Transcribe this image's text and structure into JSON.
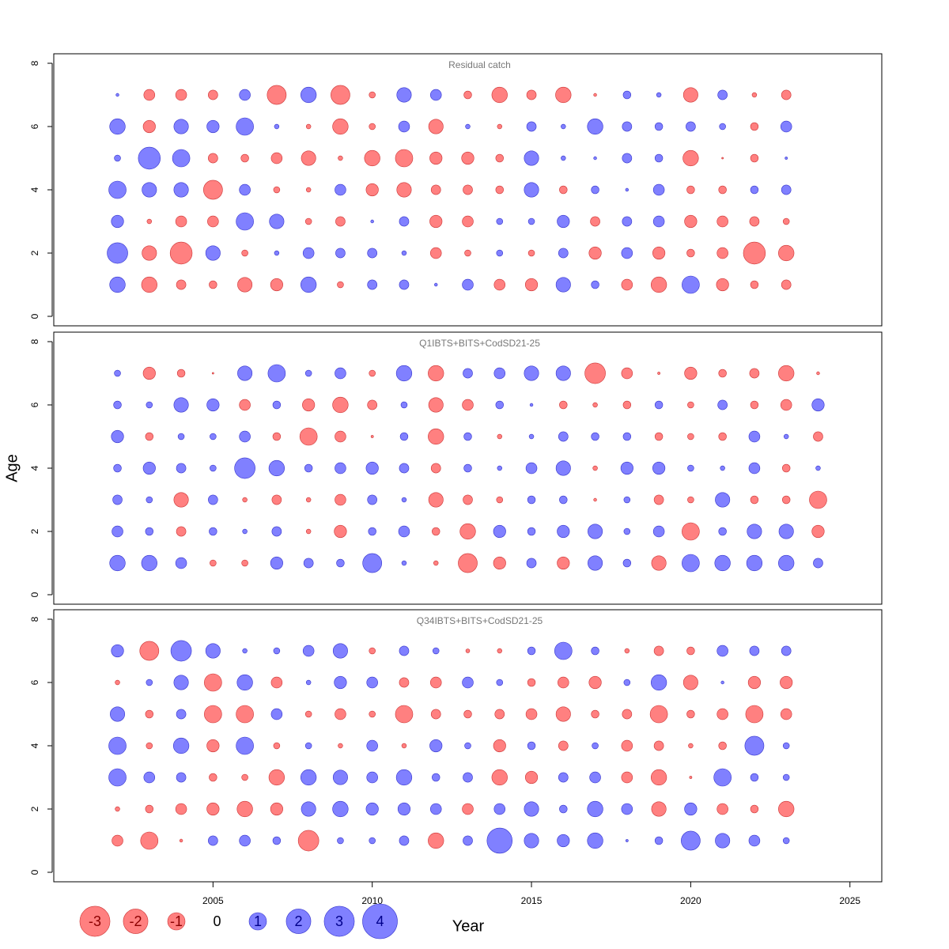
{
  "chart_data": [
    {
      "type": "bubble",
      "title": "Residual catch",
      "years": [
        2002,
        2003,
        2004,
        2005,
        2006,
        2007,
        2008,
        2009,
        2010,
        2011,
        2012,
        2013,
        2014,
        2015,
        2016,
        2017,
        2018,
        2019,
        2020,
        2021,
        2022,
        2023
      ],
      "ages": [
        1,
        2,
        3,
        4,
        5,
        6,
        7
      ],
      "values": [
        [
          0.8,
          -0.8,
          -0.3,
          -0.2,
          -0.7,
          -0.5,
          0.8,
          -0.13,
          0.3,
          0.3,
          0.03,
          0.4,
          -0.4,
          -0.5,
          0.7,
          0.2,
          -0.4,
          -0.8,
          1.0,
          -0.5,
          -0.2,
          -0.3
        ],
        [
          1.4,
          -0.7,
          -1.6,
          0.7,
          -0.13,
          0.07,
          0.4,
          0.3,
          0.3,
          0.07,
          -0.4,
          -0.13,
          0.13,
          -0.13,
          0.3,
          -0.5,
          0.4,
          -0.5,
          -0.2,
          -0.4,
          -1.6,
          -0.8
        ],
        [
          0.5,
          -0.07,
          -0.4,
          -0.4,
          1.0,
          0.7,
          -0.13,
          -0.3,
          0.03,
          0.3,
          -0.5,
          -0.4,
          0.13,
          0.13,
          0.5,
          -0.3,
          0.3,
          0.4,
          -0.5,
          -0.4,
          -0.3,
          -0.13
        ],
        [
          1.0,
          0.7,
          0.7,
          -1.2,
          0.4,
          -0.13,
          -0.07,
          0.4,
          -0.5,
          -0.7,
          -0.3,
          -0.3,
          -0.2,
          0.7,
          -0.2,
          0.2,
          0.03,
          0.4,
          -0.2,
          -0.2,
          0.2,
          0.3
        ],
        [
          0.13,
          1.6,
          1.0,
          -0.3,
          -0.2,
          -0.4,
          -0.7,
          -0.07,
          -0.8,
          -1.0,
          -0.5,
          -0.5,
          -0.2,
          0.7,
          0.07,
          0.03,
          0.3,
          0.2,
          -0.8,
          -0.01,
          -0.2,
          0.02
        ],
        [
          0.8,
          -0.5,
          0.7,
          0.5,
          1.0,
          0.07,
          -0.07,
          -0.8,
          -0.13,
          0.4,
          -0.7,
          0.07,
          -0.07,
          0.3,
          0.07,
          0.8,
          0.3,
          0.2,
          0.3,
          0.13,
          -0.2,
          0.4
        ],
        [
          0.03,
          -0.4,
          -0.4,
          -0.3,
          0.4,
          -1.2,
          0.8,
          -1.2,
          -0.13,
          0.7,
          0.4,
          -0.2,
          -0.8,
          -0.3,
          -0.8,
          -0.03,
          0.2,
          0.07,
          -0.7,
          0.3,
          -0.07,
          -0.3
        ]
      ],
      "xlim": [
        2000,
        2026
      ],
      "ylim": [
        -0.3,
        8.3
      ],
      "yticks": [
        0,
        2,
        4,
        6,
        8
      ],
      "positive_color": "#8080ff",
      "negative_color": "#ff8080"
    },
    {
      "type": "bubble",
      "title": "Q1IBTS+BITS+CodSD21-25",
      "y_label": "Age",
      "years": [
        2002,
        2003,
        2004,
        2005,
        2006,
        2007,
        2008,
        2009,
        2010,
        2011,
        2012,
        2013,
        2014,
        2015,
        2016,
        2017,
        2018,
        2019,
        2020,
        2021,
        2022,
        2023,
        2024
      ],
      "ages": [
        1,
        2,
        3,
        4,
        5,
        6,
        7
      ],
      "values": [
        [
          0.8,
          0.8,
          0.4,
          -0.13,
          -0.13,
          0.5,
          0.3,
          0.2,
          1.2,
          0.07,
          -0.07,
          -1.2,
          -0.5,
          0.3,
          -0.5,
          0.7,
          0.2,
          -0.7,
          1.0,
          0.8,
          0.8,
          0.8,
          0.3
        ],
        [
          0.4,
          0.2,
          -0.3,
          0.2,
          0.07,
          0.3,
          -0.07,
          -0.5,
          0.2,
          0.4,
          -0.2,
          -0.8,
          0.5,
          0.2,
          0.5,
          0.7,
          0.13,
          0.4,
          -1.0,
          0.2,
          0.7,
          0.7,
          -0.5
        ],
        [
          0.3,
          0.13,
          -0.7,
          0.3,
          -0.07,
          -0.3,
          -0.07,
          -0.4,
          0.3,
          0.07,
          -0.7,
          -0.3,
          -0.13,
          0.2,
          0.2,
          -0.03,
          0.13,
          -0.3,
          -0.13,
          0.7,
          -0.2,
          -0.2,
          -1.0
        ],
        [
          0.2,
          0.5,
          0.3,
          0.13,
          1.4,
          0.8,
          0.2,
          0.4,
          0.5,
          0.3,
          -0.3,
          0.2,
          0.07,
          0.4,
          0.7,
          -0.07,
          0.5,
          0.5,
          0.13,
          0.07,
          0.4,
          -0.2,
          0.07
        ],
        [
          0.5,
          -0.2,
          0.13,
          0.13,
          0.4,
          -0.2,
          -1.0,
          -0.4,
          -0.02,
          0.2,
          -0.8,
          0.2,
          -0.07,
          0.07,
          0.3,
          0.2,
          0.2,
          -0.2,
          -0.13,
          -0.2,
          0.4,
          0.07,
          -0.3
        ],
        [
          0.2,
          0.13,
          0.7,
          0.5,
          -0.4,
          0.2,
          -0.5,
          -0.8,
          -0.3,
          0.13,
          -0.7,
          -0.4,
          0.2,
          0.03,
          -0.2,
          -0.07,
          -0.2,
          0.2,
          -0.13,
          0.3,
          -0.2,
          -0.4,
          0.5
        ],
        [
          0.13,
          -0.5,
          -0.2,
          -0.01,
          0.7,
          1.0,
          0.13,
          0.4,
          -0.13,
          0.8,
          -0.8,
          0.3,
          0.4,
          0.7,
          0.7,
          -1.4,
          -0.4,
          -0.02,
          -0.5,
          -0.2,
          -0.3,
          -0.8,
          -0.03
        ]
      ],
      "xlim": [
        2000,
        2026
      ],
      "ylim": [
        -0.3,
        8.3
      ],
      "yticks": [
        0,
        2,
        4,
        6,
        8
      ],
      "positive_color": "#8080ff",
      "negative_color": "#ff8080"
    },
    {
      "type": "bubble",
      "title": "Q34IBTS+BITS+CodSD21-25",
      "x_label": "Year",
      "years": [
        2002,
        2003,
        2004,
        2005,
        2006,
        2007,
        2008,
        2009,
        2010,
        2011,
        2012,
        2013,
        2014,
        2015,
        2016,
        2017,
        2018,
        2019,
        2020,
        2021,
        2022,
        2023
      ],
      "ages": [
        1,
        2,
        3,
        4,
        5,
        6,
        7
      ],
      "values": [
        [
          -0.4,
          -1.0,
          -0.03,
          0.3,
          0.4,
          0.2,
          -1.4,
          0.13,
          0.13,
          0.3,
          -0.8,
          0.3,
          2.1,
          0.7,
          0.5,
          0.8,
          0.02,
          0.2,
          1.2,
          0.7,
          0.4,
          0.13
        ],
        [
          -0.07,
          -0.2,
          -0.4,
          -0.5,
          -0.8,
          -0.5,
          0.7,
          0.8,
          0.5,
          0.5,
          0.4,
          -0.4,
          0.4,
          0.7,
          0.2,
          0.8,
          0.4,
          -0.7,
          0.5,
          -0.4,
          -0.2,
          -0.8
        ],
        [
          1.0,
          0.4,
          0.3,
          -0.2,
          -0.13,
          -0.8,
          0.8,
          0.7,
          0.4,
          0.8,
          0.2,
          0.3,
          -0.8,
          -0.5,
          0.3,
          0.4,
          -0.4,
          -0.8,
          -0.02,
          1.0,
          0.2,
          0.13
        ],
        [
          1.0,
          -0.13,
          0.8,
          -0.5,
          1.0,
          -0.13,
          0.13,
          -0.07,
          0.4,
          -0.07,
          0.5,
          0.13,
          -0.5,
          0.2,
          -0.3,
          0.13,
          -0.4,
          -0.3,
          -0.07,
          -0.2,
          1.2,
          0.13
        ],
        [
          0.7,
          -0.2,
          0.3,
          -1.0,
          -1.0,
          0.4,
          -0.13,
          -0.4,
          -0.13,
          -1.0,
          -0.3,
          -0.2,
          -0.3,
          -0.4,
          -0.7,
          -0.2,
          -0.3,
          -1.0,
          -0.2,
          -0.4,
          -1.0,
          -0.4
        ],
        [
          -0.07,
          0.13,
          0.7,
          -1.0,
          0.8,
          -0.4,
          0.07,
          0.5,
          0.4,
          -0.3,
          -0.4,
          0.4,
          0.13,
          -0.2,
          -0.4,
          -0.5,
          0.13,
          0.8,
          -0.7,
          0.03,
          -0.5,
          -0.5
        ],
        [
          0.5,
          -1.2,
          1.4,
          0.7,
          0.07,
          0.13,
          0.4,
          0.7,
          -0.13,
          0.3,
          0.13,
          -0.05,
          -0.07,
          0.2,
          1.0,
          0.2,
          -0.07,
          -0.3,
          -0.2,
          0.4,
          0.3,
          0.3
        ]
      ],
      "xlim": [
        2000,
        2026
      ],
      "ylim": [
        -0.3,
        8.3
      ],
      "yticks": [
        0,
        2,
        4,
        6,
        8
      ],
      "xticks": [
        2005,
        2010,
        2015,
        2020,
        2025
      ],
      "legend": [
        -3,
        -2,
        -1,
        0,
        1,
        2,
        3,
        4
      ],
      "positive_color": "#8080ff",
      "negative_color": "#ff8080"
    }
  ]
}
